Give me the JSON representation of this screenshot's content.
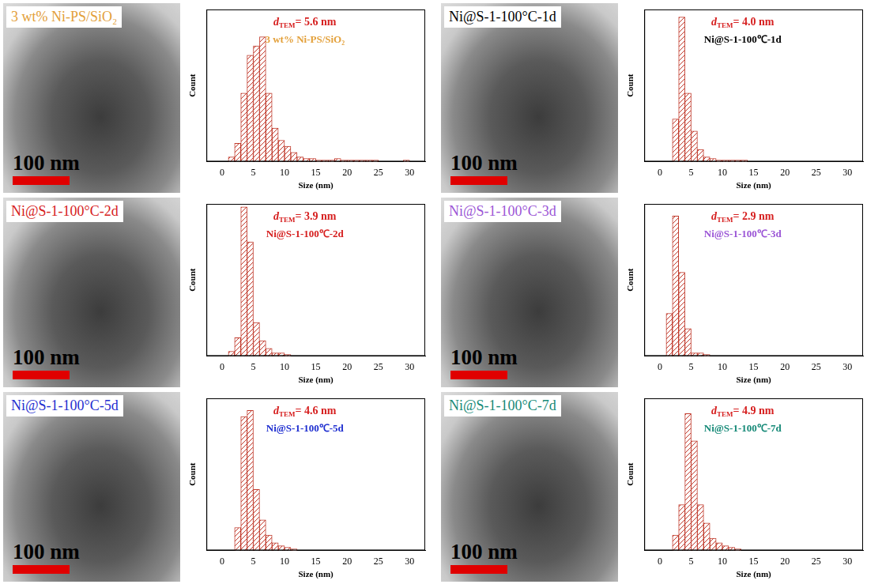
{
  "images": [
    {
      "label": "3 wt% Ni-PS/SiO₂",
      "scale_bar": "100 nm"
    },
    {
      "label": "Ni@S-1-100°C-1d",
      "scale_bar": "100 nm"
    },
    {
      "label": "Ni@S-1-100°C-2d",
      "scale_bar": "100 nm"
    },
    {
      "label": "Ni@S-1-100°C-3d",
      "scale_bar": "100 nm"
    },
    {
      "label": "Ni@S-1-100°C-5d",
      "scale_bar": "100 nm"
    },
    {
      "label": "Ni@S-1-100°C-7d",
      "scale_bar": "100 nm"
    }
  ],
  "chart_data": [
    {
      "type": "bar",
      "annotation": {
        "main": "d",
        "sub": "TEM",
        "rest": "= 5.6 nm"
      },
      "subtitle": "3 wt% Ni-PS/SiO₂",
      "xlabel": "Size (nm)",
      "ylabel": "Count",
      "bins": [
        1,
        2,
        3,
        4,
        5,
        6,
        7,
        8,
        9,
        10,
        11,
        12,
        13,
        14,
        15,
        16,
        17,
        18,
        19,
        20,
        21,
        22,
        23,
        24,
        25,
        26,
        27,
        28,
        29,
        30
      ],
      "values": [
        3,
        12,
        45,
        70,
        76,
        82,
        45,
        22,
        14,
        10,
        6,
        3,
        2,
        2,
        1,
        1,
        1,
        2,
        1,
        1,
        1,
        1,
        1,
        1,
        0,
        0,
        0,
        0,
        1
      ],
      "color": "#c0392b",
      "xlim": [
        0,
        30
      ],
      "xticks": [
        0,
        5,
        10,
        15,
        20,
        25,
        30
      ],
      "ylim": [
        0,
        100
      ],
      "tick_labels": "x",
      "grid": false
    },
    {
      "type": "bar",
      "annotation": {
        "main": "d",
        "sub": "TEM",
        "rest": "= 4.0 nm"
      },
      "subtitle": "Ni@S-1-100℃-1d",
      "xlabel": "Size (nm)",
      "ylabel": "Count",
      "bins": [
        2,
        3,
        4,
        5,
        6,
        7,
        8,
        9,
        10,
        11,
        12,
        13,
        14
      ],
      "values": [
        28,
        95,
        45,
        20,
        8,
        3,
        2,
        1,
        1,
        1,
        1,
        1
      ],
      "color": "#c0392b",
      "xlim": [
        0,
        30
      ],
      "xticks": [
        0,
        5,
        10,
        15,
        20,
        25,
        30
      ],
      "ylim": [
        0,
        100
      ],
      "tick_labels": "x",
      "grid": false
    },
    {
      "type": "bar",
      "annotation": {
        "main": "d",
        "sub": "TEM",
        "rest": "= 3.9 nm"
      },
      "subtitle": "Ni@S-1-100℃-2d",
      "xlabel": "Size (nm)",
      "ylabel": "Count",
      "bins": [
        1,
        2,
        3,
        4,
        5,
        6,
        7,
        8,
        9,
        10,
        11
      ],
      "values": [
        3,
        12,
        98,
        75,
        22,
        10,
        5,
        2,
        2,
        1
      ],
      "color": "#c0392b",
      "xlim": [
        0,
        30
      ],
      "xticks": [
        0,
        5,
        10,
        15,
        20,
        25,
        30
      ],
      "ylim": [
        0,
        100
      ],
      "tick_labels": "x",
      "grid": false
    },
    {
      "type": "bar",
      "annotation": {
        "main": "d",
        "sub": "TEM",
        "rest": "= 2.9 nm"
      },
      "subtitle": "Ni@S-1-100℃-3d",
      "xlabel": "Size (nm)",
      "ylabel": "Count",
      "bins": [
        1,
        2,
        3,
        4,
        5,
        6,
        7,
        8
      ],
      "values": [
        28,
        92,
        55,
        18,
        2,
        2,
        1
      ],
      "color": "#c0392b",
      "xlim": [
        0,
        30
      ],
      "xticks": [
        0,
        5,
        10,
        15,
        20,
        25,
        30
      ],
      "ylim": [
        0,
        100
      ],
      "tick_labels": "x",
      "grid": false
    },
    {
      "type": "bar",
      "annotation": {
        "main": "d",
        "sub": "TEM",
        "rest": "= 4.6 nm"
      },
      "subtitle": "Ni@S-1-100℃-5d",
      "xlabel": "Size (nm)",
      "ylabel": "Count",
      "bins": [
        2,
        3,
        4,
        5,
        6,
        7,
        8,
        9,
        10,
        11,
        12
      ],
      "values": [
        15,
        88,
        92,
        40,
        20,
        10,
        5,
        3,
        2,
        1
      ],
      "color": "#c0392b",
      "xlim": [
        0,
        30
      ],
      "xticks": [
        0,
        5,
        10,
        15,
        20,
        25,
        30
      ],
      "ylim": [
        0,
        100
      ],
      "tick_labels": "x",
      "grid": false
    },
    {
      "type": "bar",
      "annotation": {
        "main": "d",
        "sub": "TEM",
        "rest": "= 4.9 nm"
      },
      "subtitle": "Ni@S-1-100℃-7d",
      "xlabel": "Size (nm)",
      "ylabel": "Count",
      "bins": [
        2,
        3,
        4,
        5,
        6,
        7,
        8,
        9,
        10,
        11,
        12,
        13
      ],
      "values": [
        10,
        30,
        90,
        72,
        30,
        18,
        8,
        5,
        3,
        2,
        1
      ],
      "color": "#c0392b",
      "xlim": [
        0,
        30
      ],
      "xticks": [
        0,
        5,
        10,
        15,
        20,
        25,
        30
      ],
      "ylim": [
        0,
        100
      ],
      "tick_labels": "x",
      "grid": false
    }
  ]
}
